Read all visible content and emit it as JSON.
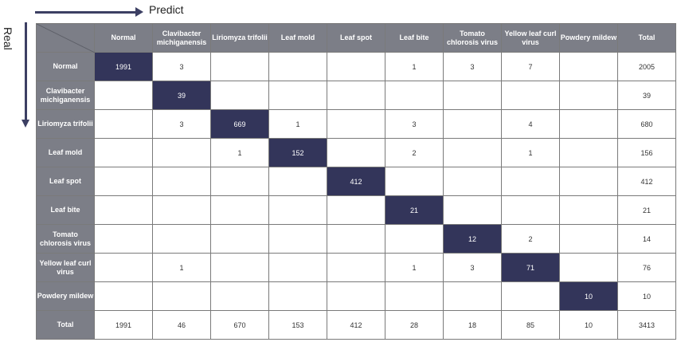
{
  "axis": {
    "x_label": "Predict",
    "y_label": "Real"
  },
  "table": {
    "total_label": "Total"
  },
  "chart_data": {
    "type": "table",
    "title": "",
    "column_headers": [
      "Normal",
      "Clavibacter michiganensis",
      "Liriomyza trifolii",
      "Leaf mold",
      "Leaf spot",
      "Leaf bite",
      "Tomato chlorosis virus",
      "Yellow leaf curl virus",
      "Powdery mildew",
      "Total"
    ],
    "rows": [
      {
        "label": "Normal",
        "cells": [
          "1991",
          "3",
          "",
          "",
          "",
          "1",
          "3",
          "7",
          "",
          "2005"
        ]
      },
      {
        "label": "Clavibacter michiganensis",
        "cells": [
          "",
          "39",
          "",
          "",
          "",
          "",
          "",
          "",
          "",
          "39"
        ]
      },
      {
        "label": "Liriomyza trifolii",
        "cells": [
          "",
          "3",
          "669",
          "1",
          "",
          "3",
          "",
          "4",
          "",
          "680"
        ]
      },
      {
        "label": "Leaf mold",
        "cells": [
          "",
          "",
          "1",
          "152",
          "",
          "2",
          "",
          "1",
          "",
          "156"
        ]
      },
      {
        "label": "Leaf spot",
        "cells": [
          "",
          "",
          "",
          "",
          "412",
          "",
          "",
          "",
          "",
          "412"
        ]
      },
      {
        "label": "Leaf bite",
        "cells": [
          "",
          "",
          "",
          "",
          "",
          "21",
          "",
          "",
          "",
          "21"
        ]
      },
      {
        "label": "Tomato chlorosis virus",
        "cells": [
          "",
          "",
          "",
          "",
          "",
          "",
          "12",
          "2",
          "",
          "14"
        ]
      },
      {
        "label": "Yellow leaf curl virus",
        "cells": [
          "",
          "1",
          "",
          "",
          "",
          "1",
          "3",
          "71",
          "",
          "76"
        ]
      },
      {
        "label": "Powdery mildew",
        "cells": [
          "",
          "",
          "",
          "",
          "",
          "",
          "",
          "",
          "10",
          "10"
        ]
      },
      {
        "label": "Total",
        "cells": [
          "1991",
          "46",
          "670",
          "153",
          "412",
          "28",
          "18",
          "85",
          "10",
          "3413"
        ]
      }
    ],
    "colors": {
      "header_bg": "#7c7e87",
      "diagonal_bg": "#33355a",
      "cell_bg": "#ffffff",
      "arrow": "#3c3f63"
    }
  }
}
